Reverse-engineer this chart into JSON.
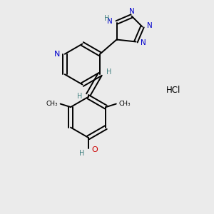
{
  "bg_color": "#ebebeb",
  "bond_color": "#000000",
  "nitrogen_color": "#0000cc",
  "oxygen_color": "#cc0000",
  "h_color": "#408080",
  "line_width": 1.4,
  "figsize": [
    3.0,
    3.0
  ],
  "dpi": 100,
  "xlim": [
    0,
    10
  ],
  "ylim": [
    0,
    10
  ]
}
